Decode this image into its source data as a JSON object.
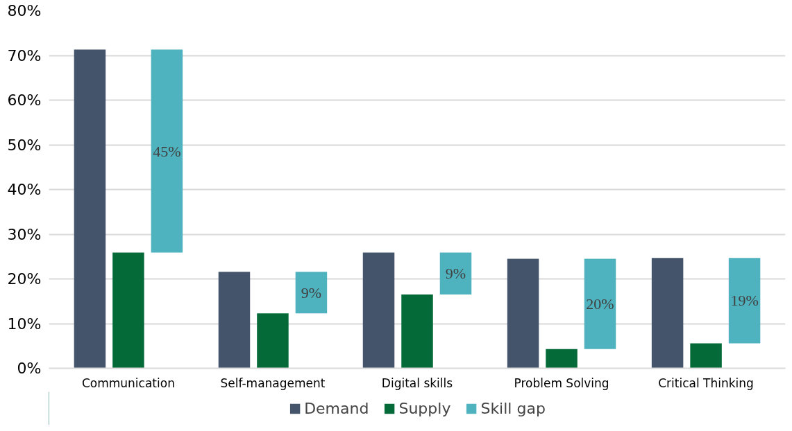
{
  "chart_data": {
    "type": "bar",
    "categories": [
      "Communication",
      "Self-management",
      "Digital skills",
      "Problem Solving",
      "Critical Thinking"
    ],
    "series": [
      {
        "name": "Demand",
        "color": "#44546a",
        "values": [
          71.3,
          21.6,
          25.9,
          24.5,
          24.7
        ]
      },
      {
        "name": "Supply",
        "color": "#046a38",
        "values": [
          25.9,
          12.3,
          16.5,
          4.3,
          5.6
        ]
      },
      {
        "name": "Skill gap",
        "color": "#4fb3bf",
        "base": [
          25.9,
          12.3,
          16.5,
          4.3,
          5.6
        ],
        "values": [
          45.4,
          9.3,
          9.4,
          20.2,
          19.1
        ],
        "value_labels": [
          "45%",
          "9%",
          "9%",
          "20%",
          "19%"
        ]
      }
    ],
    "ylim": [
      0,
      80
    ],
    "yticks": [
      {
        "value": 0,
        "label": "0%"
      },
      {
        "value": 10,
        "label": "10%"
      },
      {
        "value": 20,
        "label": "20%"
      },
      {
        "value": 30,
        "label": "30%"
      },
      {
        "value": 40,
        "label": "40%"
      },
      {
        "value": 50,
        "label": "50%"
      },
      {
        "value": 60,
        "label": "60%"
      },
      {
        "value": 70,
        "label": "70%"
      },
      {
        "value": 80,
        "label": "80%"
      }
    ],
    "grid": "y",
    "legend": "bottom"
  }
}
